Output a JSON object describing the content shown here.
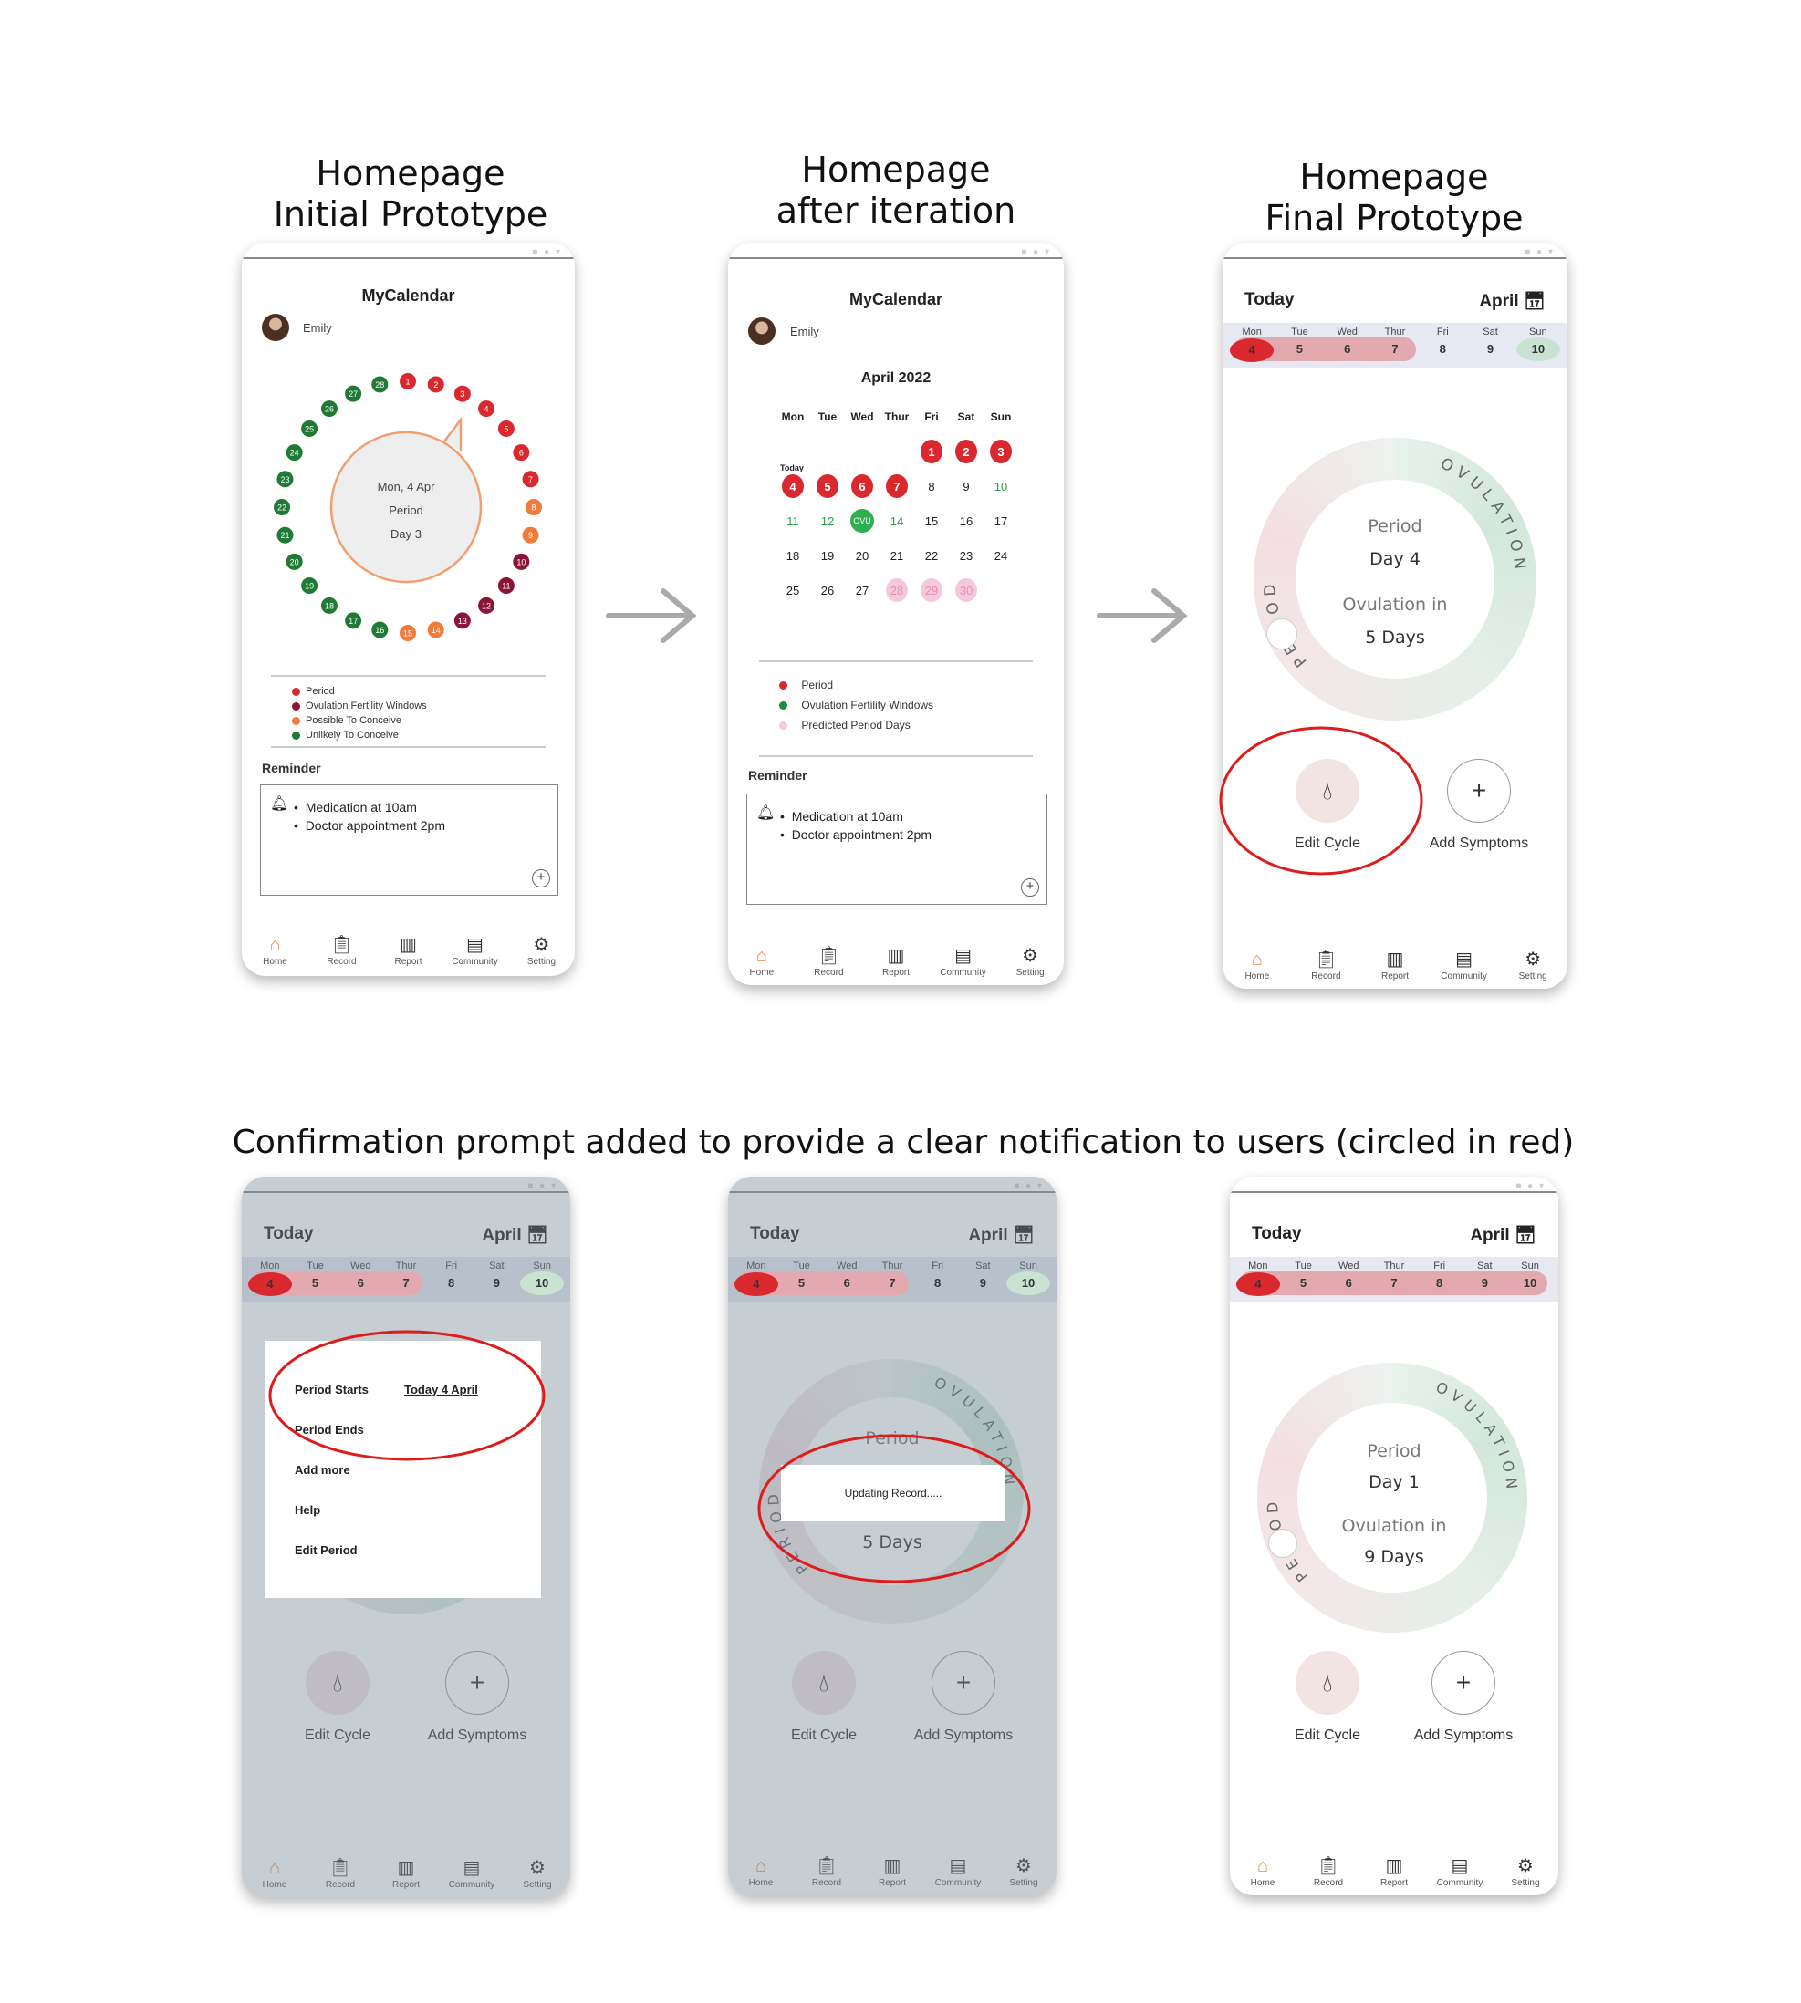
{
  "headings": {
    "initial": "Homepage\nInitial Prototype",
    "iteration": "Homepage\nafter iteration",
    "final": "Homepage\nFinal Prototype",
    "confirmation": "Confirmation prompt added to provide a clear notification to users (circled in red)"
  },
  "colors": {
    "period": "#d9282e",
    "ovulation": "#2eae4e",
    "possible": "#f07b3a",
    "dark_red": "#8a1538",
    "highlight": "#dd1c1c"
  },
  "app": {
    "title": "MyCalendar",
    "user": "Emily"
  },
  "initial": {
    "bubble": {
      "date": "Mon, 4 Apr",
      "label": "Period",
      "day": "Day 3"
    },
    "ring_numbers": [
      "1",
      "2",
      "3",
      "4",
      "5",
      "6",
      "7",
      "8",
      "9",
      "10",
      "11",
      "12",
      "13",
      "14",
      "15",
      "16",
      "17",
      "18",
      "19",
      "20",
      "21",
      "22",
      "23",
      "24",
      "25",
      "26",
      "27",
      "28"
    ],
    "legend": [
      "Period",
      "Ovulation Fertility Windows",
      "Possible To Conceive",
      "Unlikely To Conceive"
    ]
  },
  "iteration": {
    "month": "April 2022",
    "weekdays": [
      "Mon",
      "Tue",
      "Wed",
      "Thur",
      "Fri",
      "Sat",
      "Sun"
    ],
    "today_label": "Today",
    "ovu_label": "OVU",
    "legend": [
      "Period",
      "Ovulation Fertility Windows",
      "Predicted Period Days"
    ]
  },
  "reminder": {
    "title": "Reminder",
    "items": [
      "Medication at 10am",
      "Doctor appointment 2pm"
    ]
  },
  "week": {
    "today": "Today",
    "month": "April",
    "days": [
      "Mon",
      "Tue",
      "Wed",
      "Thur",
      "Fri",
      "Sat",
      "Sun"
    ],
    "dates": [
      "4",
      "5",
      "6",
      "7",
      "8",
      "9",
      "10"
    ]
  },
  "ring": {
    "ovulation_arc": "OVULATION",
    "periods_arc": "PERIODS",
    "final": {
      "period": "Period",
      "day": "Day 4",
      "ovulation_in": "Ovulation in",
      "days": "5 Days"
    },
    "after": {
      "period": "Period",
      "day": "Day 1",
      "ovulation_in": "Ovulation in",
      "days": "9 Days"
    },
    "partial_period": "Period",
    "partial_days": "5 Days"
  },
  "actions": {
    "edit_cycle": "Edit Cycle",
    "add_symptoms": "Add Symptoms"
  },
  "menu": {
    "period_starts": "Period Starts",
    "period_starts_value": "Today  4 April",
    "period_ends": "Period Ends",
    "add_more": "Add more",
    "help": "Help",
    "edit_period": "Edit Period"
  },
  "updating": "Updating Record.....",
  "nav": [
    "Home",
    "Record",
    "Report",
    "Community",
    "Setting"
  ]
}
